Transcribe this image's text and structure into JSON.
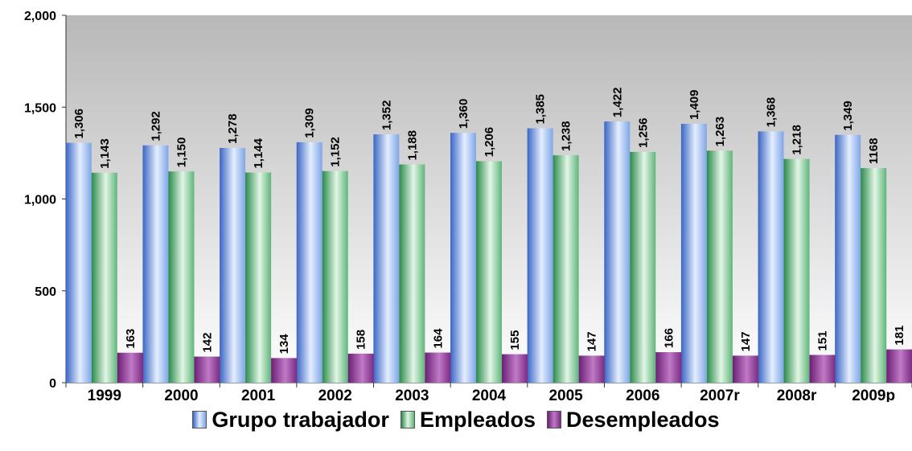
{
  "chart_data": {
    "type": "bar",
    "categories": [
      "1999",
      "2000",
      "2001",
      "2002",
      "2003",
      "2004",
      "2005",
      "2006",
      "2007r",
      "2008r",
      "2009p"
    ],
    "series": [
      {
        "name": "Grupo trabajador",
        "values": [
          1306,
          1292,
          1278,
          1309,
          1352,
          1360,
          1385,
          1422,
          1409,
          1368,
          1349
        ],
        "labels": [
          "1,306",
          "1,292",
          "1,278",
          "1,309",
          "1,352",
          "1,360",
          "1,385",
          "1,422",
          "1,409",
          "1,368",
          "1,349"
        ],
        "color": "#8eb2e8"
      },
      {
        "name": "Empleados",
        "values": [
          1143,
          1150,
          1144,
          1152,
          1188,
          1206,
          1238,
          1256,
          1263,
          1218,
          1168
        ],
        "labels": [
          "1,143",
          "1,150",
          "1,144",
          "1,152",
          "1,188",
          "1,206",
          "1,238",
          "1,256",
          "1,263",
          "1,218",
          "1168"
        ],
        "color": "#7fc99a"
      },
      {
        "name": "Desempleados",
        "values": [
          163,
          142,
          134,
          158,
          164,
          155,
          147,
          166,
          147,
          151,
          181
        ],
        "labels": [
          "163",
          "142",
          "134",
          "158",
          "164",
          "155",
          "147",
          "166",
          "147",
          "151",
          "181"
        ],
        "color": "#9b3e9e"
      }
    ],
    "yticks": [
      "0",
      "500",
      "1,000",
      "1,500",
      "2,000"
    ],
    "ylim": [
      0,
      2000
    ],
    "grid": false,
    "legend": "bottom"
  }
}
